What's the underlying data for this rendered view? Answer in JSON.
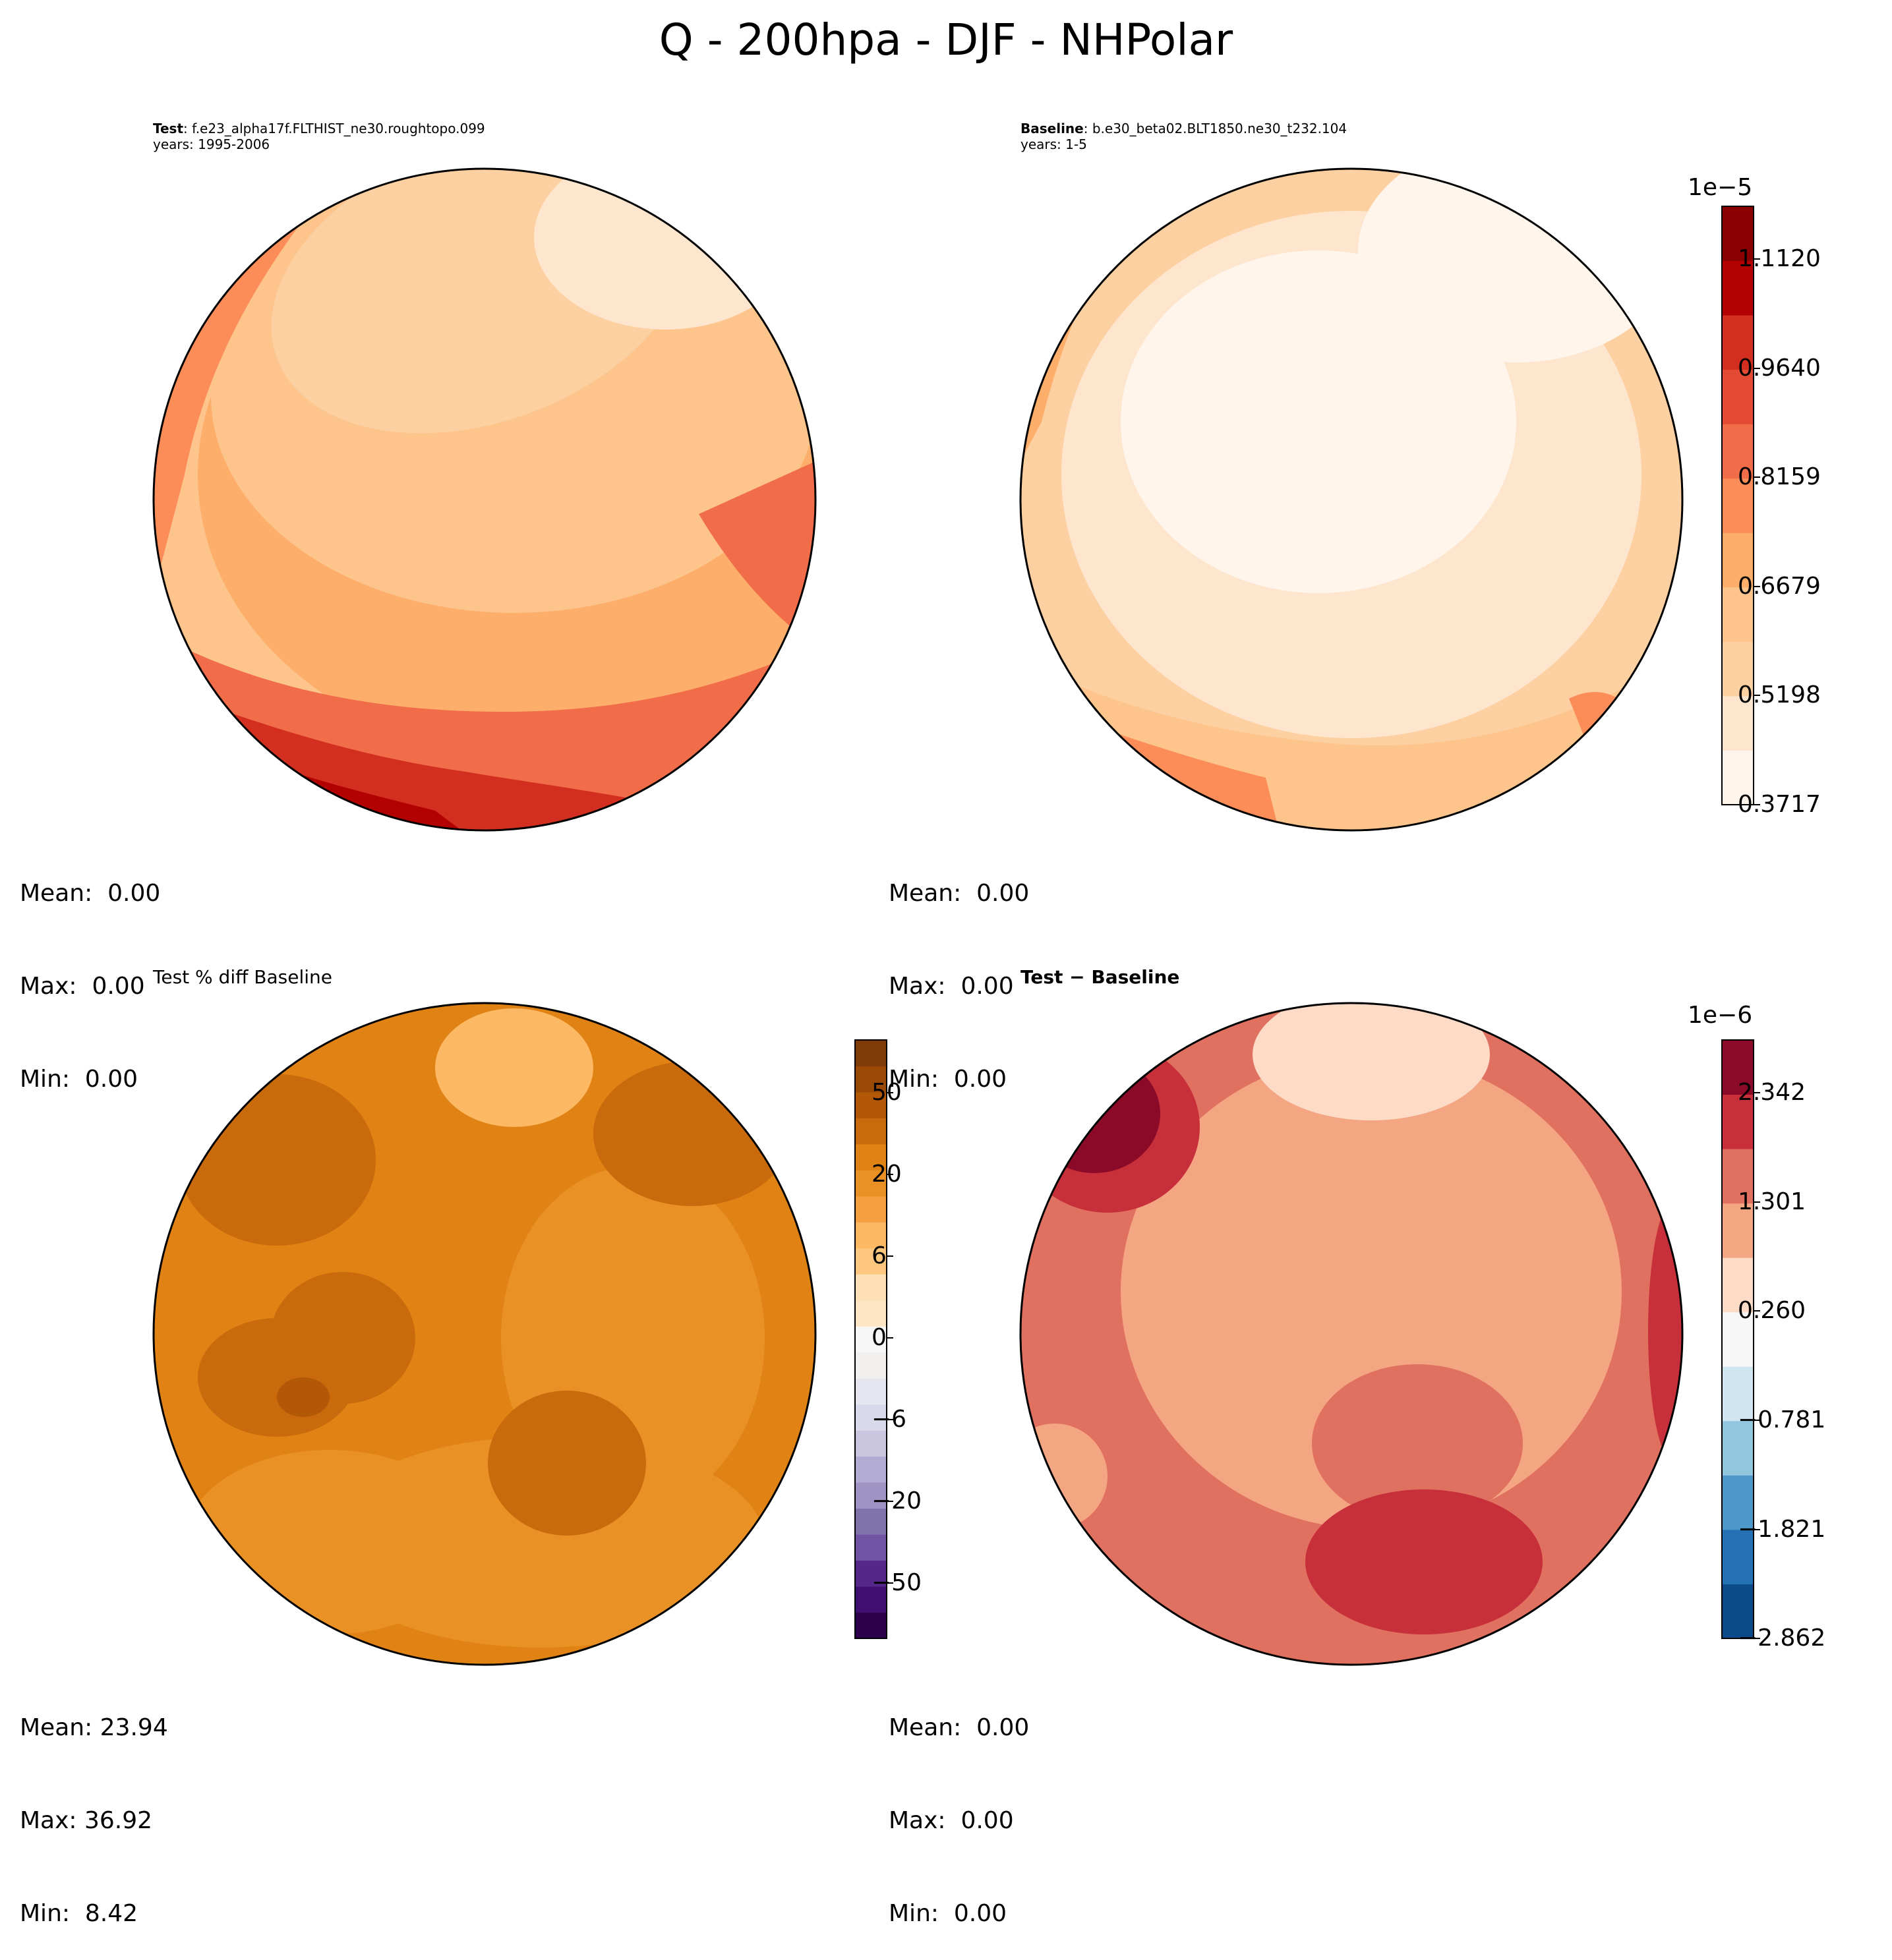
{
  "figure": {
    "title": "Q - 200hpa - DJF - NHPolar"
  },
  "panels": {
    "test": {
      "label_bold": "Test",
      "label_rest": ": f.e23_alpha17f.FLTHIST_ne30.roughtopo.099",
      "years": "years: 1995-2006",
      "stats": {
        "mean": "Mean:  0.00",
        "max": "Max:  0.00",
        "min": "Min:  0.00"
      }
    },
    "baseline": {
      "label_bold": "Baseline",
      "label_rest": ": b.e30_beta02.BLT1850.ne30_t232.104",
      "years": "years: 1-5",
      "stats": {
        "mean": "Mean:  0.00",
        "max": "Max:  0.00",
        "min": "Min:  0.00"
      }
    },
    "pctdiff": {
      "title": "Test % diff Baseline",
      "stats": {
        "mean": "Mean: 23.94",
        "max": "Max: 36.92",
        "min": "Min:  8.42"
      }
    },
    "diff": {
      "title_a": "Test",
      "title_sep": " − ",
      "title_b": "Baseline",
      "stats": {
        "mean": "Mean:  0.00",
        "max": "Max:  0.00",
        "min": "Min:  0.00"
      }
    }
  },
  "colorbars": {
    "top": {
      "exponent": "1e−5",
      "ticks": [
        "1.1120",
        "0.9640",
        "0.8159",
        "0.6679",
        "0.5198",
        "0.3717"
      ],
      "colors": [
        "#fff5eb",
        "#fee6ce",
        "#fdd0a2",
        "#fdc48c",
        "#fdae6b",
        "#fc8d59",
        "#f16c49",
        "#e34a33",
        "#d32f20",
        "#b30000",
        "#8b0000"
      ]
    },
    "pct": {
      "ticks": [
        "50",
        "20",
        "6",
        "0",
        "−6",
        "−20",
        "−50"
      ],
      "colors": [
        "#2d004b",
        "#3f0f72",
        "#542788",
        "#6e54a2",
        "#8073ac",
        "#9e93c3",
        "#b2abd2",
        "#cbc6e0",
        "#d8daeb",
        "#e6e6f0",
        "#f2f0ee",
        "#f7f7f7",
        "#fee5c3",
        "#fee0b6",
        "#fdc77f",
        "#fdb863",
        "#f4a040",
        "#e99124",
        "#e08214",
        "#c96a0d",
        "#b35806",
        "#9a4a06",
        "#7f3b08"
      ]
    },
    "diff": {
      "exponent": "1e−6",
      "ticks": [
        "2.342",
        "1.301",
        "0.260",
        "−0.781",
        "−1.821",
        "−2.862"
      ],
      "colors": [
        "#0b4b8a",
        "#2471b4",
        "#4d98c9",
        "#92c5de",
        "#d1e5f0",
        "#f7f7f7",
        "#fddbc7",
        "#f4a582",
        "#e07060",
        "#c7303a",
        "#8b0a28"
      ]
    }
  }
}
